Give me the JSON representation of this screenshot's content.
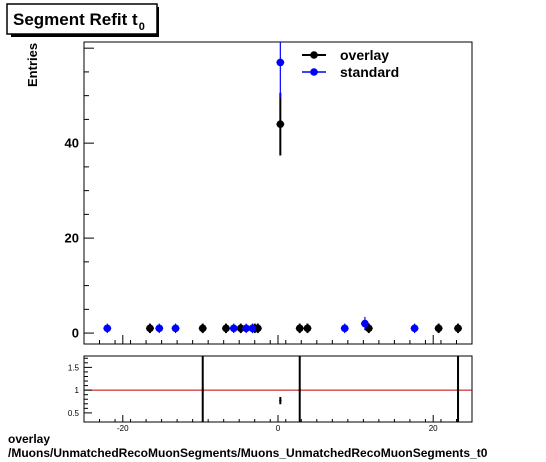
{
  "title": {
    "main": "Segment Refit t",
    "sub": "0"
  },
  "footer": {
    "line1": "overlay",
    "line2": "/Muons/UnmatchedRecoMuonSegments/Muons_UnmatchedRecoMuonSegments_t0"
  },
  "chart_data": [
    {
      "type": "scatter",
      "ylabel": "Entries",
      "xlim": [
        -25,
        25
      ],
      "ylim": [
        -2.3,
        61.3
      ],
      "y_ticks": [
        0,
        20,
        40
      ],
      "x_ticks": [
        -20,
        0,
        20
      ],
      "legend_position": "top-right",
      "series": [
        {
          "name": "overlay",
          "color": "#000000",
          "points": [
            {
              "x": -16.5,
              "y": 1,
              "err": 1
            },
            {
              "x": -9.7,
              "y": 1,
              "err": 1
            },
            {
              "x": -6.7,
              "y": 1,
              "err": 1
            },
            {
              "x": -4.8,
              "y": 1,
              "err": 1
            },
            {
              "x": -3.0,
              "y": 1,
              "err": 1
            },
            {
              "x": -2.6,
              "y": 1,
              "err": 1
            },
            {
              "x": 0.3,
              "y": 44,
              "err": 6.6
            },
            {
              "x": 2.8,
              "y": 1,
              "err": 1
            },
            {
              "x": 3.8,
              "y": 1,
              "err": 1
            },
            {
              "x": 11.7,
              "y": 1,
              "err": 1
            },
            {
              "x": 20.7,
              "y": 1,
              "err": 1
            },
            {
              "x": 23.2,
              "y": 1,
              "err": 1
            }
          ]
        },
        {
          "name": "standard",
          "color": "#0000ff",
          "points": [
            {
              "x": -22.0,
              "y": 1,
              "err": 1
            },
            {
              "x": -15.3,
              "y": 1,
              "err": 1
            },
            {
              "x": -13.2,
              "y": 1,
              "err": 1
            },
            {
              "x": -5.7,
              "y": 1,
              "err": 1
            },
            {
              "x": -4.1,
              "y": 1,
              "err": 1
            },
            {
              "x": -3.3,
              "y": 1,
              "err": 1
            },
            {
              "x": 0.3,
              "y": 57,
              "err": 7.5
            },
            {
              "x": 8.6,
              "y": 1,
              "err": 1
            },
            {
              "x": 11.2,
              "y": 2,
              "err": 1.4
            },
            {
              "x": 17.6,
              "y": 1,
              "err": 1
            }
          ]
        }
      ]
    },
    {
      "type": "scatter",
      "xlim": [
        -25,
        25
      ],
      "ylim": [
        0.3,
        1.75
      ],
      "y_ticks": [
        0.5,
        1,
        1.5
      ],
      "y_tick_labels": [
        "0.5",
        "1",
        "1.5"
      ],
      "x_ticks": [
        -20,
        0,
        20
      ],
      "x_tick_labels": [
        "-20",
        "0",
        "20"
      ],
      "reference_line": {
        "y": 1,
        "color": "#c00000"
      },
      "series": [
        {
          "name": "",
          "color": "#000000",
          "points": [
            {
              "x": -9.7,
              "y": 1,
              "err": 5
            },
            {
              "x": 0.3,
              "y": 0.77,
              "err": 0.08
            },
            {
              "x": 2.8,
              "y": 1,
              "err": 5
            },
            {
              "x": 23.2,
              "y": 1,
              "err": 5
            }
          ]
        }
      ]
    }
  ]
}
